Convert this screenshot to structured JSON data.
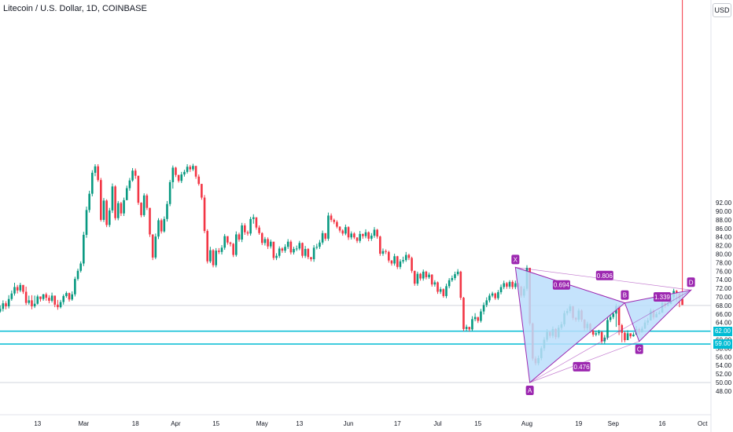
{
  "header": {
    "symbol_title": "Litecoin / U.S. Dollar, 1D, COINBASE",
    "currency": "USD"
  },
  "price_axis": {
    "labels": [
      "92.00",
      "90.00",
      "88.00",
      "86.00",
      "84.00",
      "82.00",
      "80.00",
      "78.00",
      "76.00",
      "74.00",
      "72.00",
      "70.00",
      "68.00",
      "66.00",
      "64.00",
      "62.00",
      "60.00",
      "58.00",
      "56.00",
      "54.00",
      "52.00",
      "50.00",
      "48.00"
    ],
    "values": [
      92,
      90,
      88,
      86,
      84,
      82,
      80,
      78,
      76,
      74,
      72,
      70,
      68,
      66,
      64,
      62,
      60,
      58,
      56,
      54,
      52,
      50,
      48
    ]
  },
  "time_axis": {
    "labels": [
      "13",
      "Mar",
      "18",
      "Apr",
      "15",
      "May",
      "13",
      "Jun",
      "17",
      "Jul",
      "15",
      "Aug",
      "19",
      "Sep",
      "16",
      "Oct"
    ],
    "days": [
      13,
      29,
      47,
      61,
      75,
      91,
      104,
      121,
      138,
      152,
      166,
      183,
      201,
      213,
      230,
      244
    ]
  },
  "price_tags": [
    {
      "label": "62.00",
      "value": 62,
      "color": "#00bcd4"
    },
    {
      "label": "59.00",
      "value": 59,
      "color": "#00bcd4"
    }
  ],
  "horizontal_lines": [
    {
      "value": 62,
      "color": "#00bcd4"
    },
    {
      "value": 59,
      "color": "#00bcd4"
    }
  ],
  "gray_lines": [
    68,
    50
  ],
  "harmonic_pattern": {
    "color": "#9c27b0",
    "fill": "#bbdefb",
    "points": [
      {
        "label": "X",
        "day": 179,
        "price": 76.9
      },
      {
        "label": "A",
        "day": 184,
        "price": 50.0
      },
      {
        "label": "B",
        "day": 217,
        "price": 68.6
      },
      {
        "label": "C",
        "day": 222,
        "price": 59.6
      },
      {
        "label": "D",
        "day": 240,
        "price": 71.6
      }
    ],
    "ratios": [
      {
        "label": "0.694",
        "day": 195,
        "price": 72.8
      },
      {
        "label": "0.806",
        "day": 210,
        "price": 75.0
      },
      {
        "label": "1.339",
        "day": 230,
        "price": 70.0
      },
      {
        "label": "0.476",
        "day": 202,
        "price": 53.7
      }
    ]
  },
  "candles": {
    "start_day": 0,
    "up_color": "#089981",
    "down_color": "#f23645",
    "closes": [
      67.2,
      68.5,
      67.8,
      69.5,
      70.8,
      72.3,
      71.5,
      72.8,
      71.2,
      68.6,
      69.2,
      67.8,
      68.4,
      70.1,
      69.5,
      70.6,
      69.8,
      69.1,
      70.3,
      68.2,
      67.6,
      68.8,
      70.2,
      70.9,
      69.4,
      70.6,
      74.2,
      76.1,
      77.8,
      84.5,
      90.3,
      94.1,
      99.0,
      100.5,
      97.3,
      88.0,
      92.5,
      86.8,
      90.2,
      95.8,
      88.4,
      91.9,
      89.5,
      92.6,
      95.4,
      97.2,
      99.5,
      98.3,
      92.0,
      89.1,
      93.7,
      90.8,
      84.6,
      79.2,
      84.1,
      87.9,
      85.3,
      88.2,
      91.7,
      96.8,
      100.2,
      98.5,
      97.1,
      98.6,
      99.2,
      100.4,
      99.8,
      100.6,
      98.1,
      96.4,
      93.2,
      85.4,
      78.3,
      80.9,
      77.4,
      80.8,
      80.5,
      81.5,
      84.2,
      82.7,
      82.4,
      79.8,
      84.6,
      83.4,
      86.7,
      85.1,
      84.8,
      88.2,
      88.6,
      86.2,
      84.9,
      82.6,
      83.5,
      81.8,
      82.9,
      79.1,
      79.6,
      81.3,
      80.8,
      81.7,
      82.9,
      80.4,
      81.2,
      81.3,
      82.6,
      79.6,
      81.2,
      79.3,
      78.8,
      81.5,
      81.7,
      82.7,
      84.9,
      83.6,
      89.0,
      88.0,
      87.5,
      86.4,
      85.5,
      84.8,
      86.3,
      83.9,
      84.8,
      83.9,
      83.1,
      84.7,
      84.2,
      85.1,
      83.6,
      84.3,
      85.7,
      84.1,
      80.1,
      80.7,
      80.5,
      78.5,
      77.8,
      79.5,
      77.0,
      78.3,
      78.6,
      79.8,
      79.1,
      76.1,
      73.1,
      75.4,
      74.3,
      75.9,
      74.6,
      75.2,
      72.9,
      73.4,
      71.2,
      71.8,
      70.2,
      72.5,
      73.9,
      74.4,
      75.3,
      75.9,
      69.8,
      62.5,
      63.0,
      62.4,
      64.8,
      65.3,
      64.4,
      66.6,
      68.1,
      69.2,
      70.3,
      70.8,
      69.7,
      71.1,
      72.3,
      73.2,
      72.4,
      73.5,
      72.3,
      73.2,
      72.4,
      70.3,
      71.9,
      76.8,
      63.8,
      55.6,
      54.5,
      55.7,
      58.0,
      60.0,
      61.8,
      60.9,
      62.5,
      60.6,
      62.8,
      63.6,
      66.2,
      66.7,
      67.8,
      65.1,
      64.7,
      66.8,
      64.7,
      62.7,
      63.7,
      62.1,
      61.2,
      61.5,
      61.8,
      59.6,
      60.5,
      64.6,
      65.3,
      66.1,
      67.9,
      63.4,
      61.6,
      59.9,
      61.5,
      60.8,
      61.2,
      62.5,
      61.7,
      62.6,
      64.0,
      64.5,
      66.8,
      65.2,
      66.0,
      66.3,
      68.6,
      67.9,
      68.3,
      69.9,
      71.4,
      70.8,
      69.5,
      68.1
    ],
    "highs": [
      68.0,
      69.2,
      69.0,
      70.4,
      71.5,
      73.3,
      72.8,
      73.3,
      72.0,
      72.4,
      70.3,
      70.4,
      70.3,
      70.5,
      70.1,
      70.7,
      71.0,
      70.4,
      71.0,
      70.3,
      69.3,
      69.3,
      70.6,
      71.3,
      71.0,
      71.3,
      74.7,
      76.6,
      78.3,
      85.2,
      91.1,
      94.8,
      99.6,
      101.0,
      101.0,
      97.8,
      93.1,
      92.8,
      90.8,
      96.5,
      96.1,
      92.4,
      92.2,
      93.2,
      96.0,
      97.8,
      100.1,
      100.0,
      98.3,
      92.1,
      94.2,
      94.1,
      90.8,
      84.6,
      84.8,
      88.4,
      88.3,
      88.8,
      92.4,
      97.3,
      100.7,
      100.4,
      98.5,
      99.2,
      99.7,
      101.0,
      100.8,
      101.1,
      100.6,
      98.6,
      96.4,
      93.8,
      85.8,
      81.7,
      81.2,
      81.4,
      81.4,
      82.1,
      84.7,
      84.1,
      82.9,
      82.6,
      85.3,
      85.0,
      87.3,
      87.2,
      85.5,
      88.7,
      89.3,
      88.5,
      86.7,
      85.1,
      84.0,
      83.9,
      83.4,
      82.8,
      80.2,
      81.8,
      81.6,
      82.3,
      83.5,
      83.3,
      81.7,
      82.0,
      83.1,
      82.7,
      81.9,
      81.4,
      79.3,
      82.1,
      82.4,
      83.3,
      85.5,
      84.8,
      89.7,
      89.5,
      88.3,
      87.9,
      86.5,
      85.8,
      86.9,
      86.5,
      85.3,
      85.1,
      83.8,
      85.4,
      84.8,
      85.8,
      85.3,
      84.9,
      86.3,
      85.9,
      84.3,
      81.3,
      81.1,
      80.8,
      78.6,
      80.1,
      79.6,
      78.8,
      79.4,
      80.5,
      80.1,
      79.4,
      76.1,
      75.9,
      75.6,
      76.4,
      76.1,
      75.7,
      75.3,
      73.9,
      73.6,
      72.3,
      72.0,
      73.1,
      74.4,
      75.0,
      75.9,
      76.5,
      76.1,
      70.0,
      63.5,
      63.0,
      65.5,
      66.2,
      65.3,
      67.2,
      68.7,
      69.9,
      70.8,
      71.2,
      71.0,
      71.6,
      72.9,
      73.8,
      73.5,
      73.9,
      73.9,
      73.8,
      73.3,
      72.6,
      72.5,
      77.4,
      76.8,
      64.0,
      56.1,
      56.3,
      58.5,
      60.6,
      62.5,
      62.0,
      63.1,
      62.7,
      63.4,
      64.2,
      66.8,
      67.3,
      68.3,
      67.9,
      65.3,
      67.3,
      67.1,
      64.8,
      64.2,
      63.9,
      62.3,
      62.0,
      62.3,
      62.0,
      61.1,
      65.3,
      65.8,
      66.6,
      68.4,
      68.1,
      63.7,
      62.0,
      62.2,
      61.5,
      61.7,
      63.2,
      62.8,
      63.1,
      64.6,
      65.1,
      67.3,
      67.1,
      66.5,
      66.8,
      69.2,
      68.7,
      68.9,
      70.5,
      71.9,
      71.6,
      70.9,
      69.2
    ],
    "lows": [
      66.3,
      66.6,
      67.1,
      67.3,
      69.1,
      70.3,
      70.8,
      71.1,
      70.7,
      68.1,
      68.2,
      67.1,
      67.4,
      68.2,
      68.9,
      69.1,
      69.1,
      68.5,
      68.7,
      67.6,
      67.0,
      67.3,
      68.2,
      69.8,
      68.9,
      69.1,
      70.1,
      73.8,
      75.7,
      77.2,
      83.8,
      89.7,
      93.5,
      98.2,
      96.9,
      87.6,
      87.5,
      86.3,
      86.3,
      89.6,
      87.9,
      87.9,
      88.9,
      88.9,
      92.6,
      94.8,
      96.9,
      97.6,
      91.5,
      88.6,
      88.7,
      90.3,
      84.0,
      78.6,
      78.8,
      83.5,
      84.8,
      85.0,
      87.6,
      91.2,
      95.3,
      98.0,
      96.7,
      96.6,
      98.1,
      98.8,
      99.2,
      99.4,
      97.6,
      96.0,
      92.7,
      84.9,
      77.8,
      77.9,
      76.9,
      76.9,
      80.0,
      79.9,
      81.0,
      82.2,
      81.8,
      79.3,
      79.4,
      82.9,
      82.8,
      84.5,
      84.3,
      84.3,
      87.1,
      85.7,
      84.5,
      82.1,
      82.0,
      81.2,
      81.3,
      78.6,
      78.6,
      79.1,
      80.3,
      80.3,
      81.2,
      79.9,
      79.9,
      80.7,
      80.9,
      79.1,
      79.1,
      78.8,
      78.3,
      78.2,
      81.1,
      81.2,
      82.2,
      83.1,
      83.1,
      87.5,
      87.0,
      86.0,
      85.0,
      84.3,
      84.4,
      83.3,
      83.4,
      83.5,
      82.6,
      82.6,
      83.6,
      83.7,
      83.0,
      83.1,
      83.8,
      83.6,
      79.6,
      79.6,
      80.0,
      78.0,
      77.3,
      77.3,
      76.5,
      76.5,
      77.8,
      78.2,
      78.6,
      75.6,
      72.6,
      72.6,
      73.8,
      73.8,
      74.1,
      74.2,
      72.4,
      72.4,
      70.7,
      70.7,
      69.8,
      69.7,
      72.0,
      73.5,
      73.9,
      74.9,
      69.3,
      62.0,
      62.0,
      61.9,
      62.0,
      64.3,
      63.9,
      64.0,
      65.9,
      67.6,
      68.7,
      69.9,
      69.3,
      69.3,
      70.6,
      71.8,
      71.9,
      71.9,
      71.8,
      71.8,
      71.9,
      69.8,
      69.8,
      71.4,
      63.3,
      55.1,
      54.0,
      54.0,
      55.2,
      57.4,
      59.5,
      60.4,
      60.4,
      60.1,
      60.3,
      62.3,
      63.1,
      65.7,
      66.2,
      64.6,
      64.2,
      64.2,
      64.2,
      62.1,
      62.2,
      61.6,
      60.7,
      60.8,
      61.0,
      59.1,
      59.1,
      60.0,
      64.1,
      64.8,
      63.0,
      61.1,
      59.4,
      59.4,
      60.3,
      60.3,
      60.7,
      61.1,
      61.2,
      61.8,
      62.5,
      63.4,
      64.8,
      64.7,
      65.5,
      65.9,
      67.4,
      67.4,
      67.8,
      69.4,
      69.0,
      68.9,
      67.6
    ]
  }
}
